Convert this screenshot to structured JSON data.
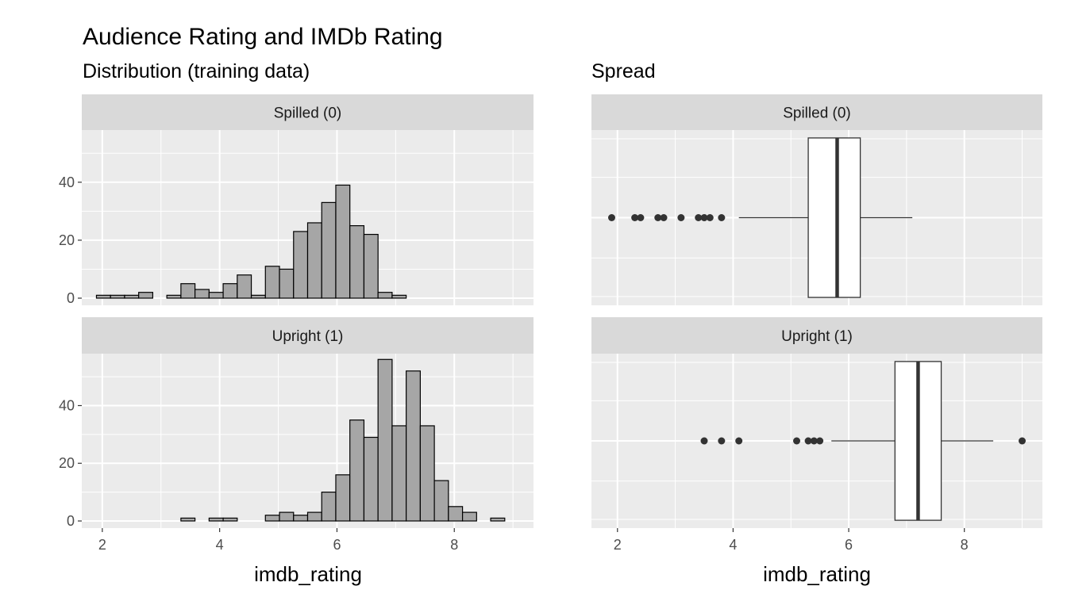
{
  "title": "Audience Rating and IMDb Rating",
  "left_subtitle": "Distribution (training data)",
  "right_subtitle": "Spread",
  "colors": {
    "panel_bg": "#ebebeb",
    "strip_bg": "#d9d9d9",
    "grid": "#ffffff",
    "bar_fill": "#a6a6a6",
    "bar_stroke": "#000000",
    "box_fill": "#ffffff",
    "box_stroke": "#333333",
    "point": "#333333"
  },
  "chart_data": [
    {
      "type": "bar",
      "name": "histogram",
      "xlabel": "imdb_rating",
      "xlim": [
        1.65,
        9.35
      ],
      "ylim": [
        0,
        58
      ],
      "xticks": [
        2,
        4,
        6,
        8
      ],
      "yticks": [
        0,
        20,
        40
      ],
      "bin_width": 0.24,
      "bin_start": 1.9,
      "facets": [
        {
          "strip": "Spilled (0)",
          "counts": [
            1,
            1,
            1,
            2,
            0,
            1,
            5,
            3,
            2,
            5,
            8,
            1,
            11,
            10,
            23,
            26,
            33,
            39,
            25,
            22,
            2,
            1,
            0,
            0,
            0,
            0,
            0,
            0,
            0,
            0,
            0
          ]
        },
        {
          "strip": "Upright (1)",
          "counts": [
            0,
            0,
            0,
            0,
            0,
            0,
            1,
            0,
            1,
            1,
            0,
            0,
            2,
            3,
            2,
            3,
            10,
            16,
            35,
            29,
            56,
            33,
            52,
            33,
            14,
            5,
            3,
            0,
            1,
            0,
            0
          ]
        }
      ]
    },
    {
      "type": "box",
      "name": "spread",
      "xlabel": "imdb_rating",
      "xlim": [
        1.55,
        9.35
      ],
      "xticks": [
        2,
        4,
        6,
        8
      ],
      "facets": [
        {
          "strip": "Spilled (0)",
          "whisker_low": 4.1,
          "q1": 5.3,
          "median": 5.8,
          "q3": 6.2,
          "whisker_high": 7.1,
          "outliers": [
            1.9,
            2.3,
            2.4,
            2.7,
            2.8,
            3.1,
            3.4,
            3.5,
            3.6,
            3.8
          ]
        },
        {
          "strip": "Upright (1)",
          "whisker_low": 5.7,
          "q1": 6.8,
          "median": 7.2,
          "q3": 7.6,
          "whisker_high": 8.5,
          "outliers": [
            3.5,
            3.8,
            4.1,
            5.1,
            5.3,
            5.4,
            5.5,
            9.0
          ]
        }
      ]
    }
  ]
}
